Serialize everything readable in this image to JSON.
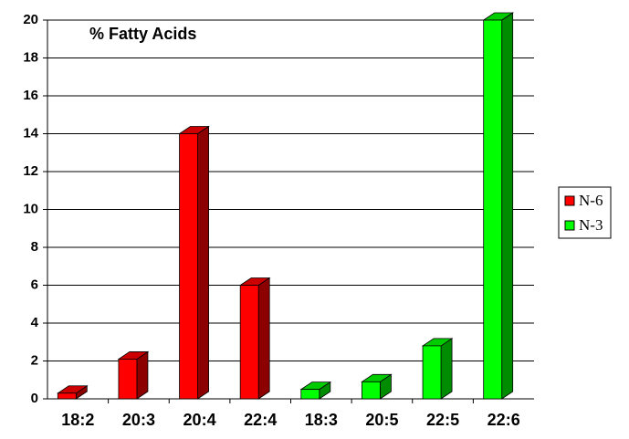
{
  "chart_data": {
    "type": "bar3d",
    "title": "% Fatty Acids",
    "categories": [
      "18:2",
      "20:3",
      "20:4",
      "22:4",
      "18:3",
      "20:5",
      "22:5",
      "22:6"
    ],
    "series": [
      {
        "name": "N-6",
        "color": "#ff0000",
        "values": [
          0.3,
          2.1,
          14,
          6,
          null,
          null,
          null,
          null
        ]
      },
      {
        "name": "N-3",
        "color": "#00ff00",
        "values": [
          null,
          null,
          null,
          null,
          0.5,
          0.9,
          2.8,
          20
        ]
      }
    ],
    "ylim": [
      0,
      20
    ],
    "yticks": [
      0,
      2,
      4,
      6,
      8,
      10,
      12,
      14,
      16,
      18,
      20
    ],
    "grid": true,
    "legend": "right"
  }
}
